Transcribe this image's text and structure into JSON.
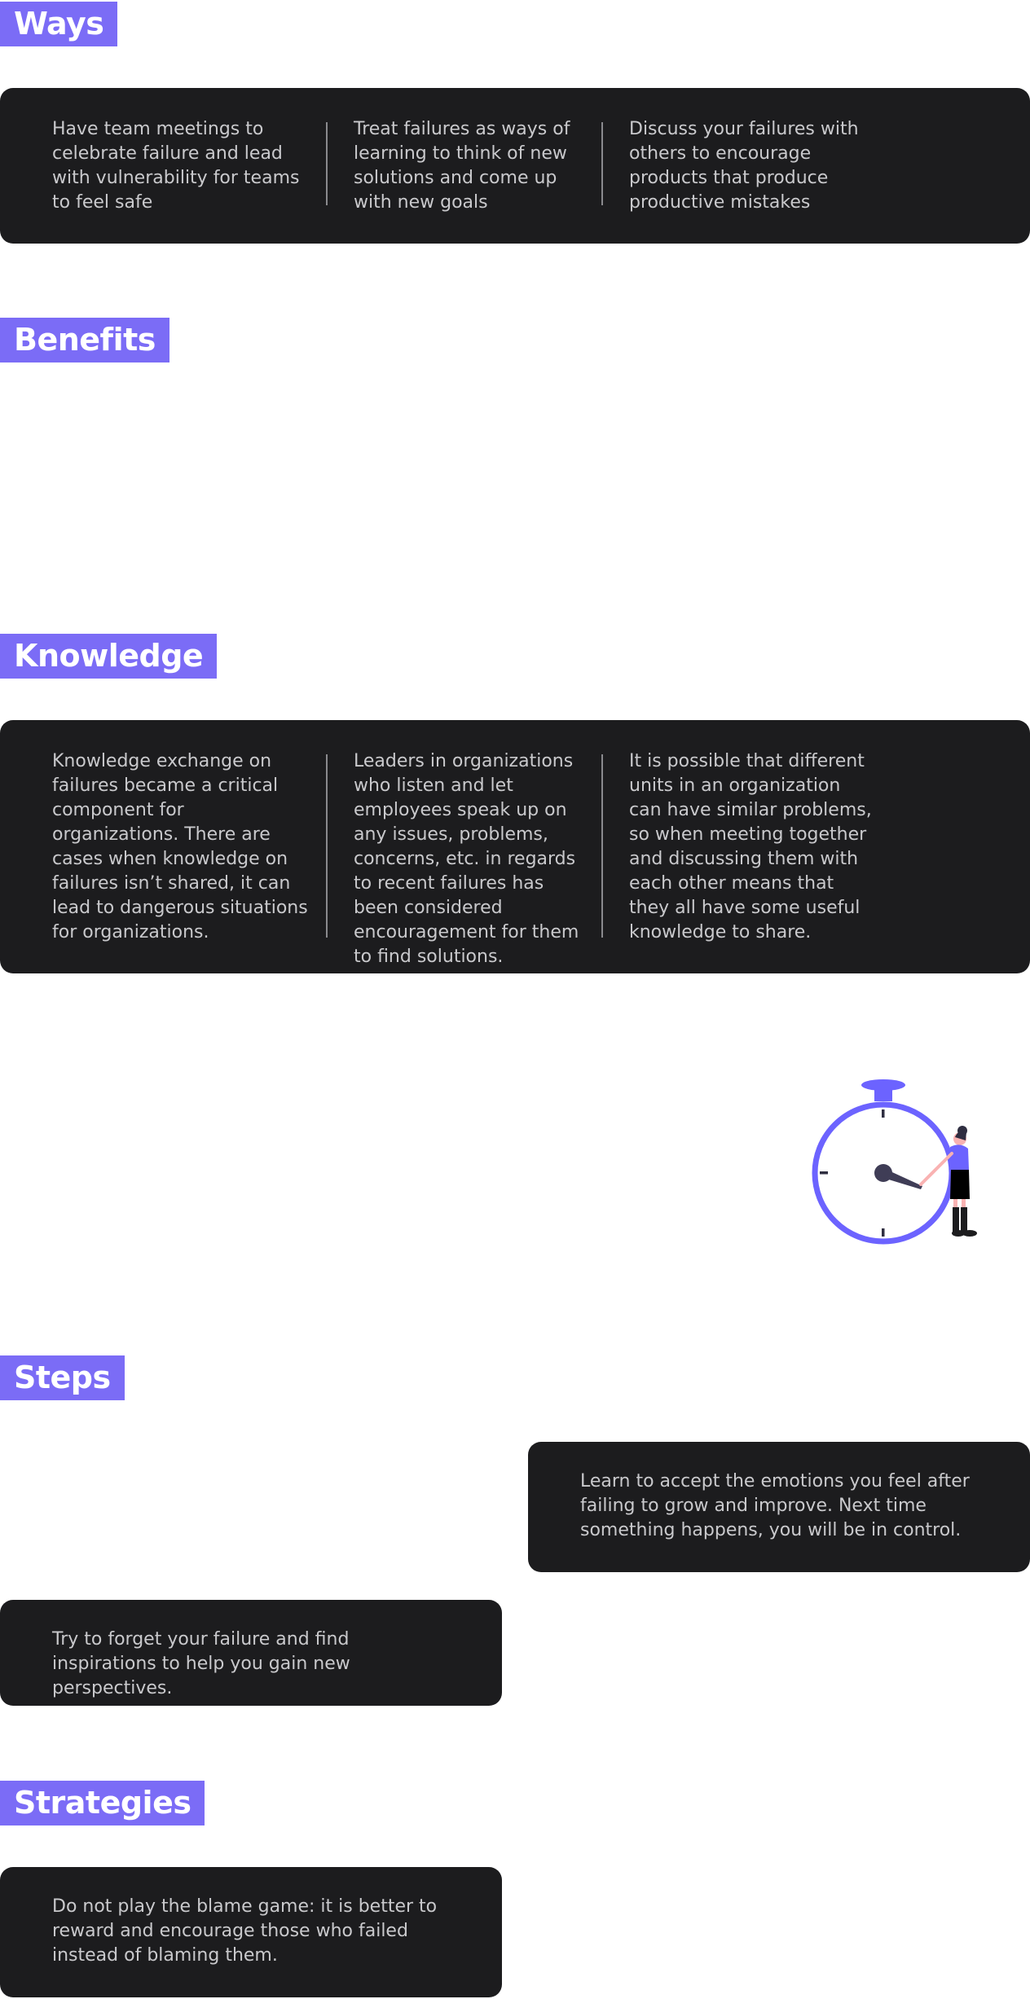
{
  "ways": {
    "title": "Ways",
    "items": [
      "Have team meetings to celebrate failure and lead with vulnerability for teams to feel safe",
      "Treat failures as ways of learning to think of new solutions and come up with new goals",
      "Discuss your failures with others to encourage products that produce productive mistakes"
    ]
  },
  "benefits": {
    "title": "Benefits"
  },
  "knowledge": {
    "title": "Knowledge",
    "items": [
      "Knowledge exchange on failures became a critical component for organizations. There are cases when knowledge on failures isn’t shared, it can lead to dangerous situations for organizations.",
      "Leaders in organizations who listen and let employees speak up on any issues, problems, concerns, etc. in regards to recent failures has been considered encouragement for them to find solutions.",
      "It is possible that different units in an organization can have similar problems, so when meeting together and discussing them with each other means that they all have some useful knowledge to share."
    ]
  },
  "illustration": {
    "icon": "stopwatch-person-illustration",
    "accent": "#6c63ff"
  },
  "steps": {
    "title": "Steps",
    "items": [
      "Learn to accept the emotions you feel after failing to grow and improve. Next time something happens, you will be in control.",
      "Try to forget your failure and find inspirations to help you gain new perspectives."
    ]
  },
  "strategies": {
    "title": "Strategies",
    "items": [
      "Do not play the blame game: it is better to reward and encourage those who failed instead of blaming them."
    ]
  },
  "colors": {
    "title_bg": "#7b6cf6",
    "card_bg": "#1c1c1e",
    "card_text": "#c9c9cc"
  }
}
